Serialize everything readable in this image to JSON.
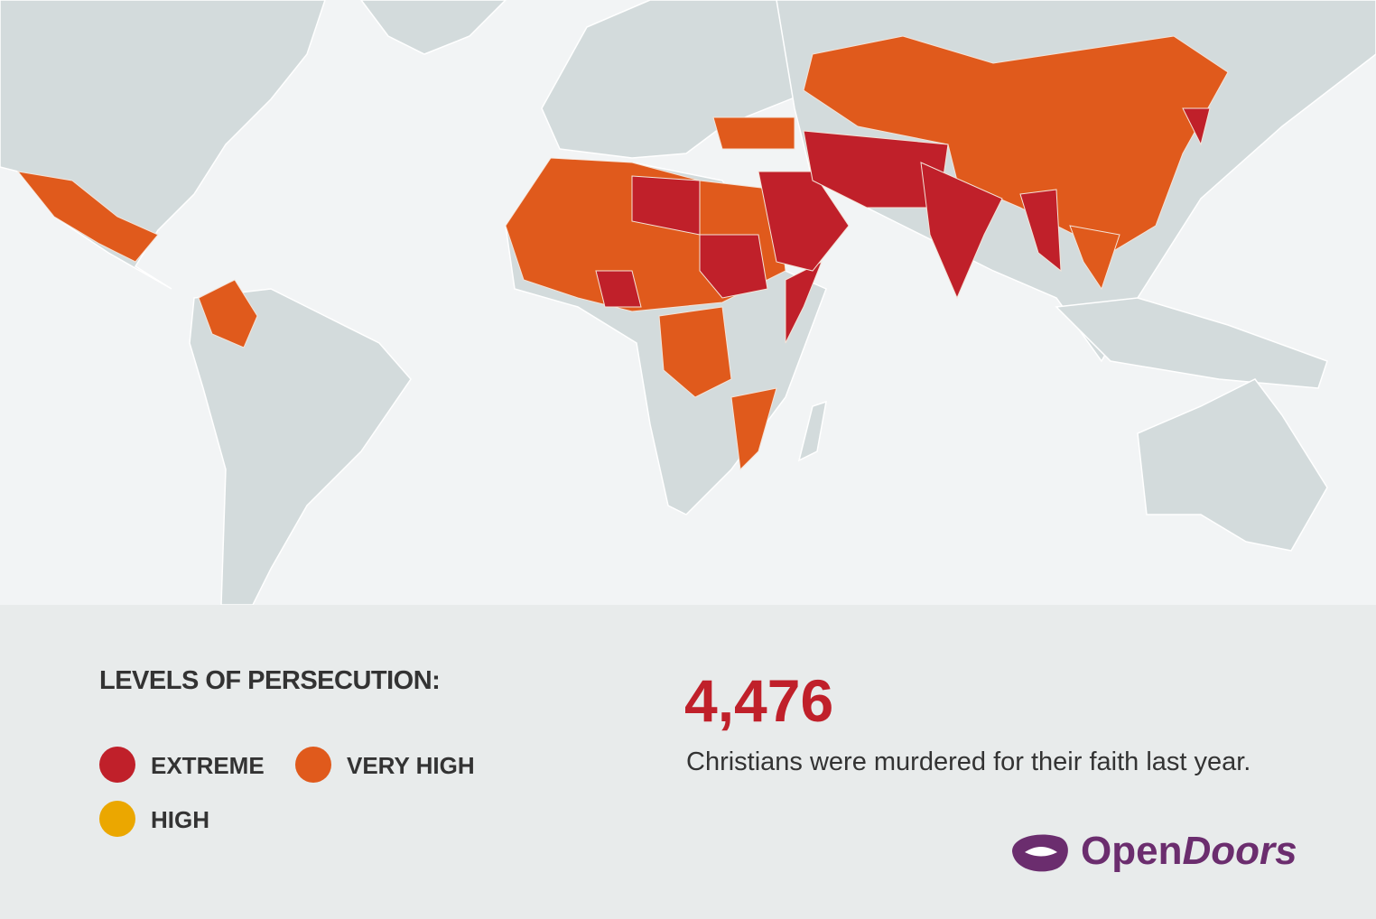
{
  "legend": {
    "title": "LEVELS OF PERSECUTION:",
    "levels": [
      {
        "name": "EXTREME",
        "color": "#c0202a"
      },
      {
        "name": "VERY HIGH",
        "color": "#e05a1c"
      },
      {
        "name": "HIGH",
        "color": "#eba700"
      }
    ]
  },
  "land_color": "#d3dbdc",
  "stat": {
    "figure": "4,476",
    "text": "Christians were murdered for their faith last year.",
    "color": "#c0202a"
  },
  "logo": {
    "word1": "Open",
    "word2": "Doors",
    "color": "#6b2d6e"
  }
}
